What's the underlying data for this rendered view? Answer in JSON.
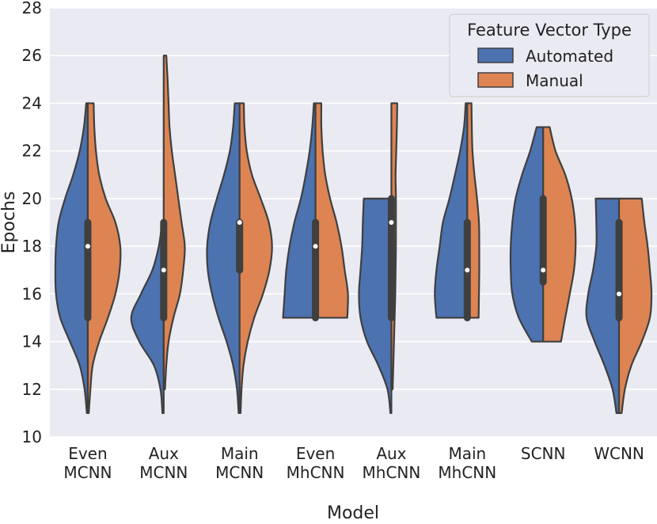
{
  "chart_data": {
    "type": "violin",
    "split": true,
    "xlabel": "Model",
    "ylabel": "Epochs",
    "ylim": [
      10,
      28
    ],
    "yticks": [
      10,
      12,
      14,
      16,
      18,
      20,
      22,
      24,
      26,
      28
    ],
    "grid": true,
    "background": "#eaeaf2",
    "legend": {
      "title": "Feature Vector Type",
      "placement": "top-right",
      "entries": [
        "Automated",
        "Manual"
      ]
    },
    "categories": [
      [
        "Even",
        "MCNN"
      ],
      [
        "Aux",
        "MCNN"
      ],
      [
        "Main",
        "MCNN"
      ],
      [
        "Even",
        "MhCNN"
      ],
      [
        "Aux",
        "MhCNN"
      ],
      [
        "Main",
        "MhCNN"
      ],
      [
        "SCNN"
      ],
      [
        "WCNN"
      ]
    ],
    "series": [
      {
        "name": "Automated",
        "color": "#4c72b0",
        "violins": [
          {
            "min": 11,
            "max": 24,
            "q1": 15,
            "median": 18,
            "q3": 19,
            "density": [
              [
                11,
                0.03
              ],
              [
                12,
                0.1
              ],
              [
                13,
                0.25
              ],
              [
                14,
                0.55
              ],
              [
                15,
                0.85
              ],
              [
                16,
                0.98
              ],
              [
                17,
                1.0
              ],
              [
                18,
                0.98
              ],
              [
                19,
                0.9
              ],
              [
                20,
                0.7
              ],
              [
                21,
                0.45
              ],
              [
                22,
                0.25
              ],
              [
                23,
                0.12
              ],
              [
                24,
                0.05
              ]
            ]
          },
          {
            "min": 11,
            "max": 19,
            "q1": 15,
            "median": 17,
            "q3": 19,
            "density": [
              [
                11,
                0.04
              ],
              [
                12,
                0.1
              ],
              [
                13,
                0.3
              ],
              [
                14,
                0.75
              ],
              [
                15,
                1.0
              ],
              [
                16,
                0.7
              ],
              [
                17,
                0.35
              ],
              [
                18,
                0.15
              ],
              [
                19,
                0.05
              ]
            ]
          },
          {
            "min": 11,
            "max": 24,
            "q1": 17,
            "median": 19,
            "q3": 19,
            "density": [
              [
                11,
                0.03
              ],
              [
                12,
                0.08
              ],
              [
                13,
                0.2
              ],
              [
                14,
                0.4
              ],
              [
                15,
                0.65
              ],
              [
                16,
                0.85
              ],
              [
                17,
                0.98
              ],
              [
                18,
                1.0
              ],
              [
                19,
                0.9
              ],
              [
                20,
                0.7
              ],
              [
                21,
                0.48
              ],
              [
                22,
                0.3
              ],
              [
                23,
                0.2
              ],
              [
                24,
                0.15
              ]
            ]
          },
          {
            "min": 15,
            "max": 24,
            "q1": 15,
            "median": 18,
            "q3": 19,
            "density": [
              [
                15,
                1.0
              ],
              [
                16,
                0.95
              ],
              [
                17,
                0.9
              ],
              [
                18,
                0.8
              ],
              [
                19,
                0.65
              ],
              [
                20,
                0.45
              ],
              [
                21,
                0.3
              ],
              [
                22,
                0.18
              ],
              [
                23,
                0.1
              ],
              [
                24,
                0.05
              ]
            ]
          },
          {
            "min": 11,
            "max": 20,
            "q1": 15,
            "median": 19,
            "q3": 20,
            "density": [
              [
                11,
                0.03
              ],
              [
                12,
                0.12
              ],
              [
                13,
                0.4
              ],
              [
                14,
                0.75
              ],
              [
                15,
                0.95
              ],
              [
                16,
                1.0
              ],
              [
                17,
                0.95
              ],
              [
                18,
                0.9
              ],
              [
                19,
                0.88
              ],
              [
                20,
                0.85
              ]
            ]
          },
          {
            "min": 15,
            "max": 24,
            "q1": 15,
            "median": 17,
            "q3": 19,
            "density": [
              [
                15,
                0.95
              ],
              [
                16,
                1.0
              ],
              [
                17,
                0.95
              ],
              [
                18,
                0.85
              ],
              [
                19,
                0.75
              ],
              [
                20,
                0.55
              ],
              [
                21,
                0.38
              ],
              [
                22,
                0.22
              ],
              [
                23,
                0.1
              ],
              [
                24,
                0.05
              ]
            ]
          },
          {
            "min": 14,
            "max": 23,
            "q1": 16.5,
            "median": 17,
            "q3": 20,
            "density": [
              [
                14,
                0.35
              ],
              [
                15,
                0.75
              ],
              [
                16,
                0.95
              ],
              [
                17,
                1.0
              ],
              [
                18,
                1.0
              ],
              [
                19,
                0.95
              ],
              [
                20,
                0.85
              ],
              [
                21,
                0.65
              ],
              [
                22,
                0.4
              ],
              [
                23,
                0.2
              ]
            ]
          },
          {
            "min": 11,
            "max": 20,
            "q1": 15,
            "median": 16,
            "q3": 19,
            "density": [
              [
                11,
                0.08
              ],
              [
                12,
                0.2
              ],
              [
                13,
                0.45
              ],
              [
                14,
                0.75
              ],
              [
                15,
                1.0
              ],
              [
                16,
                0.95
              ],
              [
                17,
                0.8
              ],
              [
                18,
                0.7
              ],
              [
                19,
                0.7
              ],
              [
                20,
                0.72
              ]
            ]
          }
        ]
      },
      {
        "name": "Manual",
        "color": "#dd8452",
        "violins": [
          {
            "min": 11,
            "max": 24,
            "density": [
              [
                11,
                0.03
              ],
              [
                12,
                0.08
              ],
              [
                13,
                0.15
              ],
              [
                14,
                0.35
              ],
              [
                15,
                0.62
              ],
              [
                16,
                0.85
              ],
              [
                17,
                0.98
              ],
              [
                18,
                1.0
              ],
              [
                19,
                0.85
              ],
              [
                20,
                0.55
              ],
              [
                21,
                0.35
              ],
              [
                22,
                0.25
              ],
              [
                23,
                0.2
              ],
              [
                24,
                0.18
              ]
            ]
          },
          {
            "min": 12,
            "max": 26,
            "density": [
              [
                12,
                0.04
              ],
              [
                13,
                0.08
              ],
              [
                14,
                0.15
              ],
              [
                15,
                0.3
              ],
              [
                16,
                0.5
              ],
              [
                17,
                0.6
              ],
              [
                18,
                0.65
              ],
              [
                19,
                0.55
              ],
              [
                20,
                0.45
              ],
              [
                21,
                0.35
              ],
              [
                22,
                0.25
              ],
              [
                23,
                0.18
              ],
              [
                24,
                0.15
              ],
              [
                25,
                0.12
              ],
              [
                26,
                0.08
              ]
            ]
          },
          {
            "min": 11,
            "max": 24,
            "density": [
              [
                11,
                0.03
              ],
              [
                12,
                0.06
              ],
              [
                13,
                0.12
              ],
              [
                14,
                0.25
              ],
              [
                15,
                0.45
              ],
              [
                16,
                0.72
              ],
              [
                17,
                0.92
              ],
              [
                18,
                1.0
              ],
              [
                19,
                0.9
              ],
              [
                20,
                0.65
              ],
              [
                21,
                0.38
              ],
              [
                22,
                0.22
              ],
              [
                23,
                0.15
              ],
              [
                24,
                0.13
              ]
            ]
          },
          {
            "min": 15,
            "max": 24,
            "density": [
              [
                15,
                0.98
              ],
              [
                16,
                1.0
              ],
              [
                17,
                0.9
              ],
              [
                18,
                0.8
              ],
              [
                19,
                0.65
              ],
              [
                20,
                0.45
              ],
              [
                21,
                0.3
              ],
              [
                22,
                0.22
              ],
              [
                23,
                0.18
              ],
              [
                24,
                0.18
              ]
            ]
          },
          {
            "min": 12,
            "max": 24,
            "density": [
              [
                12,
                0.04
              ],
              [
                13,
                0.06
              ],
              [
                14,
                0.08
              ],
              [
                15,
                0.1
              ],
              [
                16,
                0.12
              ],
              [
                17,
                0.13
              ],
              [
                18,
                0.14
              ],
              [
                19,
                0.14
              ],
              [
                20,
                0.14
              ],
              [
                21,
                0.13
              ],
              [
                22,
                0.15
              ],
              [
                23,
                0.17
              ],
              [
                24,
                0.18
              ]
            ]
          },
          {
            "min": 15,
            "max": 24,
            "density": [
              [
                15,
                0.35
              ],
              [
                16,
                0.36
              ],
              [
                17,
                0.37
              ],
              [
                18,
                0.37
              ],
              [
                19,
                0.36
              ],
              [
                20,
                0.3
              ],
              [
                21,
                0.22
              ],
              [
                22,
                0.16
              ],
              [
                23,
                0.14
              ],
              [
                24,
                0.13
              ]
            ]
          },
          {
            "min": 14,
            "max": 23,
            "density": [
              [
                14,
                0.55
              ],
              [
                15,
                0.68
              ],
              [
                16,
                0.82
              ],
              [
                17,
                0.95
              ],
              [
                18,
                1.0
              ],
              [
                19,
                0.98
              ],
              [
                20,
                0.88
              ],
              [
                21,
                0.68
              ],
              [
                22,
                0.38
              ],
              [
                23,
                0.2
              ]
            ]
          },
          {
            "min": 11,
            "max": 20,
            "density": [
              [
                11,
                0.08
              ],
              [
                12,
                0.18
              ],
              [
                13,
                0.38
              ],
              [
                14,
                0.7
              ],
              [
                15,
                0.95
              ],
              [
                16,
                1.0
              ],
              [
                17,
                0.95
              ],
              [
                18,
                0.88
              ],
              [
                19,
                0.78
              ],
              [
                20,
                0.7
              ]
            ]
          }
        ]
      }
    ]
  }
}
